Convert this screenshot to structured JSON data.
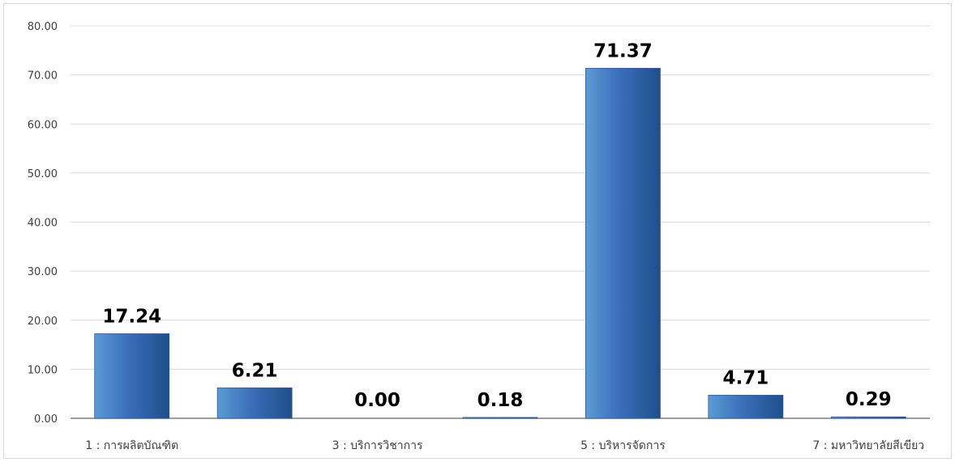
{
  "chart_data": {
    "type": "bar",
    "categories": [
      "1 : การผลิตบัณฑิต",
      "",
      "3 : บริการวิชาการ",
      "",
      "5 : บริหารจัดการ",
      "",
      "7 : มหาวิทยาลัยสีเขียว"
    ],
    "values": [
      17.24,
      6.21,
      0.0,
      0.18,
      71.37,
      4.71,
      0.29
    ],
    "value_labels": [
      "17.24",
      "6.21",
      "0.00",
      "0.18",
      "71.37",
      "4.71",
      "0.29"
    ],
    "y_ticks": [
      "0.00",
      "10.00",
      "20.00",
      "30.00",
      "40.00",
      "50.00",
      "60.00",
      "70.00",
      "80.00"
    ],
    "ylim": [
      0,
      80
    ],
    "grid": true,
    "legend": "none",
    "colors": {
      "bar_light": "#5b9bd5",
      "bar_mid": "#3a6fb8",
      "bar_dark": "#1f4e8c",
      "grid": "#d9d9d9",
      "axis": "#7f7f7f"
    }
  }
}
